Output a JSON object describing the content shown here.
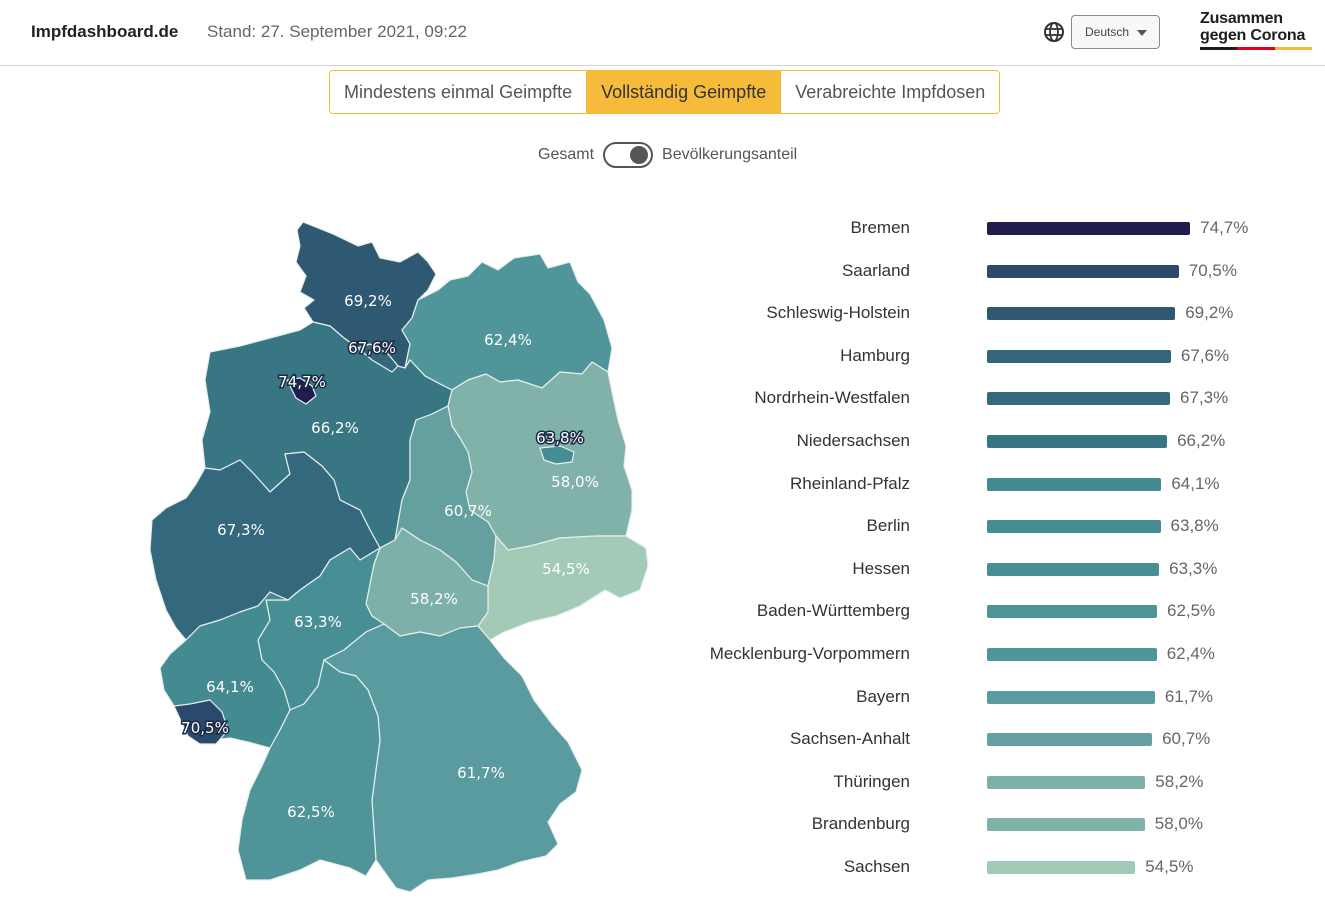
{
  "header": {
    "brand": "Impfdashboard.de",
    "stand": "Stand: 27. September 2021, 09:22",
    "globe_icon": "globe-icon",
    "language": "Deutsch",
    "logo_line1": "Zusammen",
    "logo_line2": "gegen Corona",
    "logo_flag_colors": [
      "#1d1d1b",
      "#e2001a",
      "#f6bb3b"
    ]
  },
  "tabs": [
    {
      "label": "Mindestens einmal Geimpfte",
      "active": false
    },
    {
      "label": "Vollständig Geimpfte",
      "active": true
    },
    {
      "label": "Verabreichte Impfdosen",
      "active": false
    }
  ],
  "toggle": {
    "left_label": "Gesamt",
    "right_label": "Bevölkerungsanteil",
    "state": "Bevölkerungsanteil"
  },
  "colors": {
    "accent": "#f6bb3b",
    "scale": [
      "#a3cab7",
      "#1e1d4b"
    ]
  },
  "chart_data": [
    {
      "type": "bar",
      "orientation": "horizontal",
      "title": "",
      "xlabel": "",
      "ylabel": "",
      "xlim": [
        0,
        100
      ],
      "grid": false,
      "categories": [
        "Bremen",
        "Saarland",
        "Schleswig-Holstein",
        "Hamburg",
        "Nordrhein-Westfalen",
        "Niedersachsen",
        "Rheinland-Pfalz",
        "Berlin",
        "Hessen",
        "Baden-Württemberg",
        "Mecklenburg-Vorpommern",
        "Bayern",
        "Sachsen-Anhalt",
        "Thüringen",
        "Brandenburg",
        "Sachsen"
      ],
      "values": [
        74.7,
        70.5,
        69.2,
        67.6,
        67.3,
        66.2,
        64.1,
        63.8,
        63.3,
        62.5,
        62.4,
        61.7,
        60.7,
        58.2,
        58.0,
        54.5
      ],
      "value_labels": [
        "74,7%",
        "70,5%",
        "69,2%",
        "67,6%",
        "67,3%",
        "66,2%",
        "64,1%",
        "63,8%",
        "63,3%",
        "62,5%",
        "62,4%",
        "61,7%",
        "60,7%",
        "58,2%",
        "58,0%",
        "54,5%"
      ],
      "colors": [
        "#1e1d4b",
        "#2b4a6b",
        "#2f5872",
        "#33667a",
        "#34687d",
        "#387683",
        "#438a91",
        "#458c93",
        "#488f95",
        "#4e9498",
        "#50959a",
        "#5a9ba0",
        "#64a09f",
        "#7cb0a8",
        "#80b2aa",
        "#a3cab7"
      ]
    },
    {
      "type": "choropleth",
      "title": "",
      "regions": [
        {
          "name": "Schleswig-Holstein",
          "value": 69.2,
          "label": "69,2%",
          "color": "#2f5872"
        },
        {
          "name": "Hamburg",
          "value": 67.6,
          "label": "67,6%",
          "color": "#33667a"
        },
        {
          "name": "Mecklenburg-Vorpommern",
          "value": 62.4,
          "label": "62,4%",
          "color": "#50959a"
        },
        {
          "name": "Bremen",
          "value": 74.7,
          "label": "74,7%",
          "color": "#1e1d4b"
        },
        {
          "name": "Niedersachsen",
          "value": 66.2,
          "label": "66,2%",
          "color": "#387683"
        },
        {
          "name": "Berlin",
          "value": 63.8,
          "label": "63,8%",
          "color": "#458c93"
        },
        {
          "name": "Brandenburg",
          "value": 58.0,
          "label": "58,0%",
          "color": "#80b2aa"
        },
        {
          "name": "Sachsen-Anhalt",
          "value": 60.7,
          "label": "60,7%",
          "color": "#64a09f"
        },
        {
          "name": "Nordrhein-Westfalen",
          "value": 67.3,
          "label": "67,3%",
          "color": "#34687d"
        },
        {
          "name": "Sachsen",
          "value": 54.5,
          "label": "54,5%",
          "color": "#a3cab7"
        },
        {
          "name": "Thüringen",
          "value": 58.2,
          "label": "58,2%",
          "color": "#7cb0a8"
        },
        {
          "name": "Hessen",
          "value": 63.3,
          "label": "63,3%",
          "color": "#488f95"
        },
        {
          "name": "Rheinland-Pfalz",
          "value": 64.1,
          "label": "64,1%",
          "color": "#438a91"
        },
        {
          "name": "Saarland",
          "value": 70.5,
          "label": "70,5%",
          "color": "#2b4a6b"
        },
        {
          "name": "Bayern",
          "value": 61.7,
          "label": "61,7%",
          "color": "#5a9ba0"
        },
        {
          "name": "Baden-Württemberg",
          "value": 62.5,
          "label": "62,5%",
          "color": "#4e9498"
        }
      ]
    }
  ]
}
